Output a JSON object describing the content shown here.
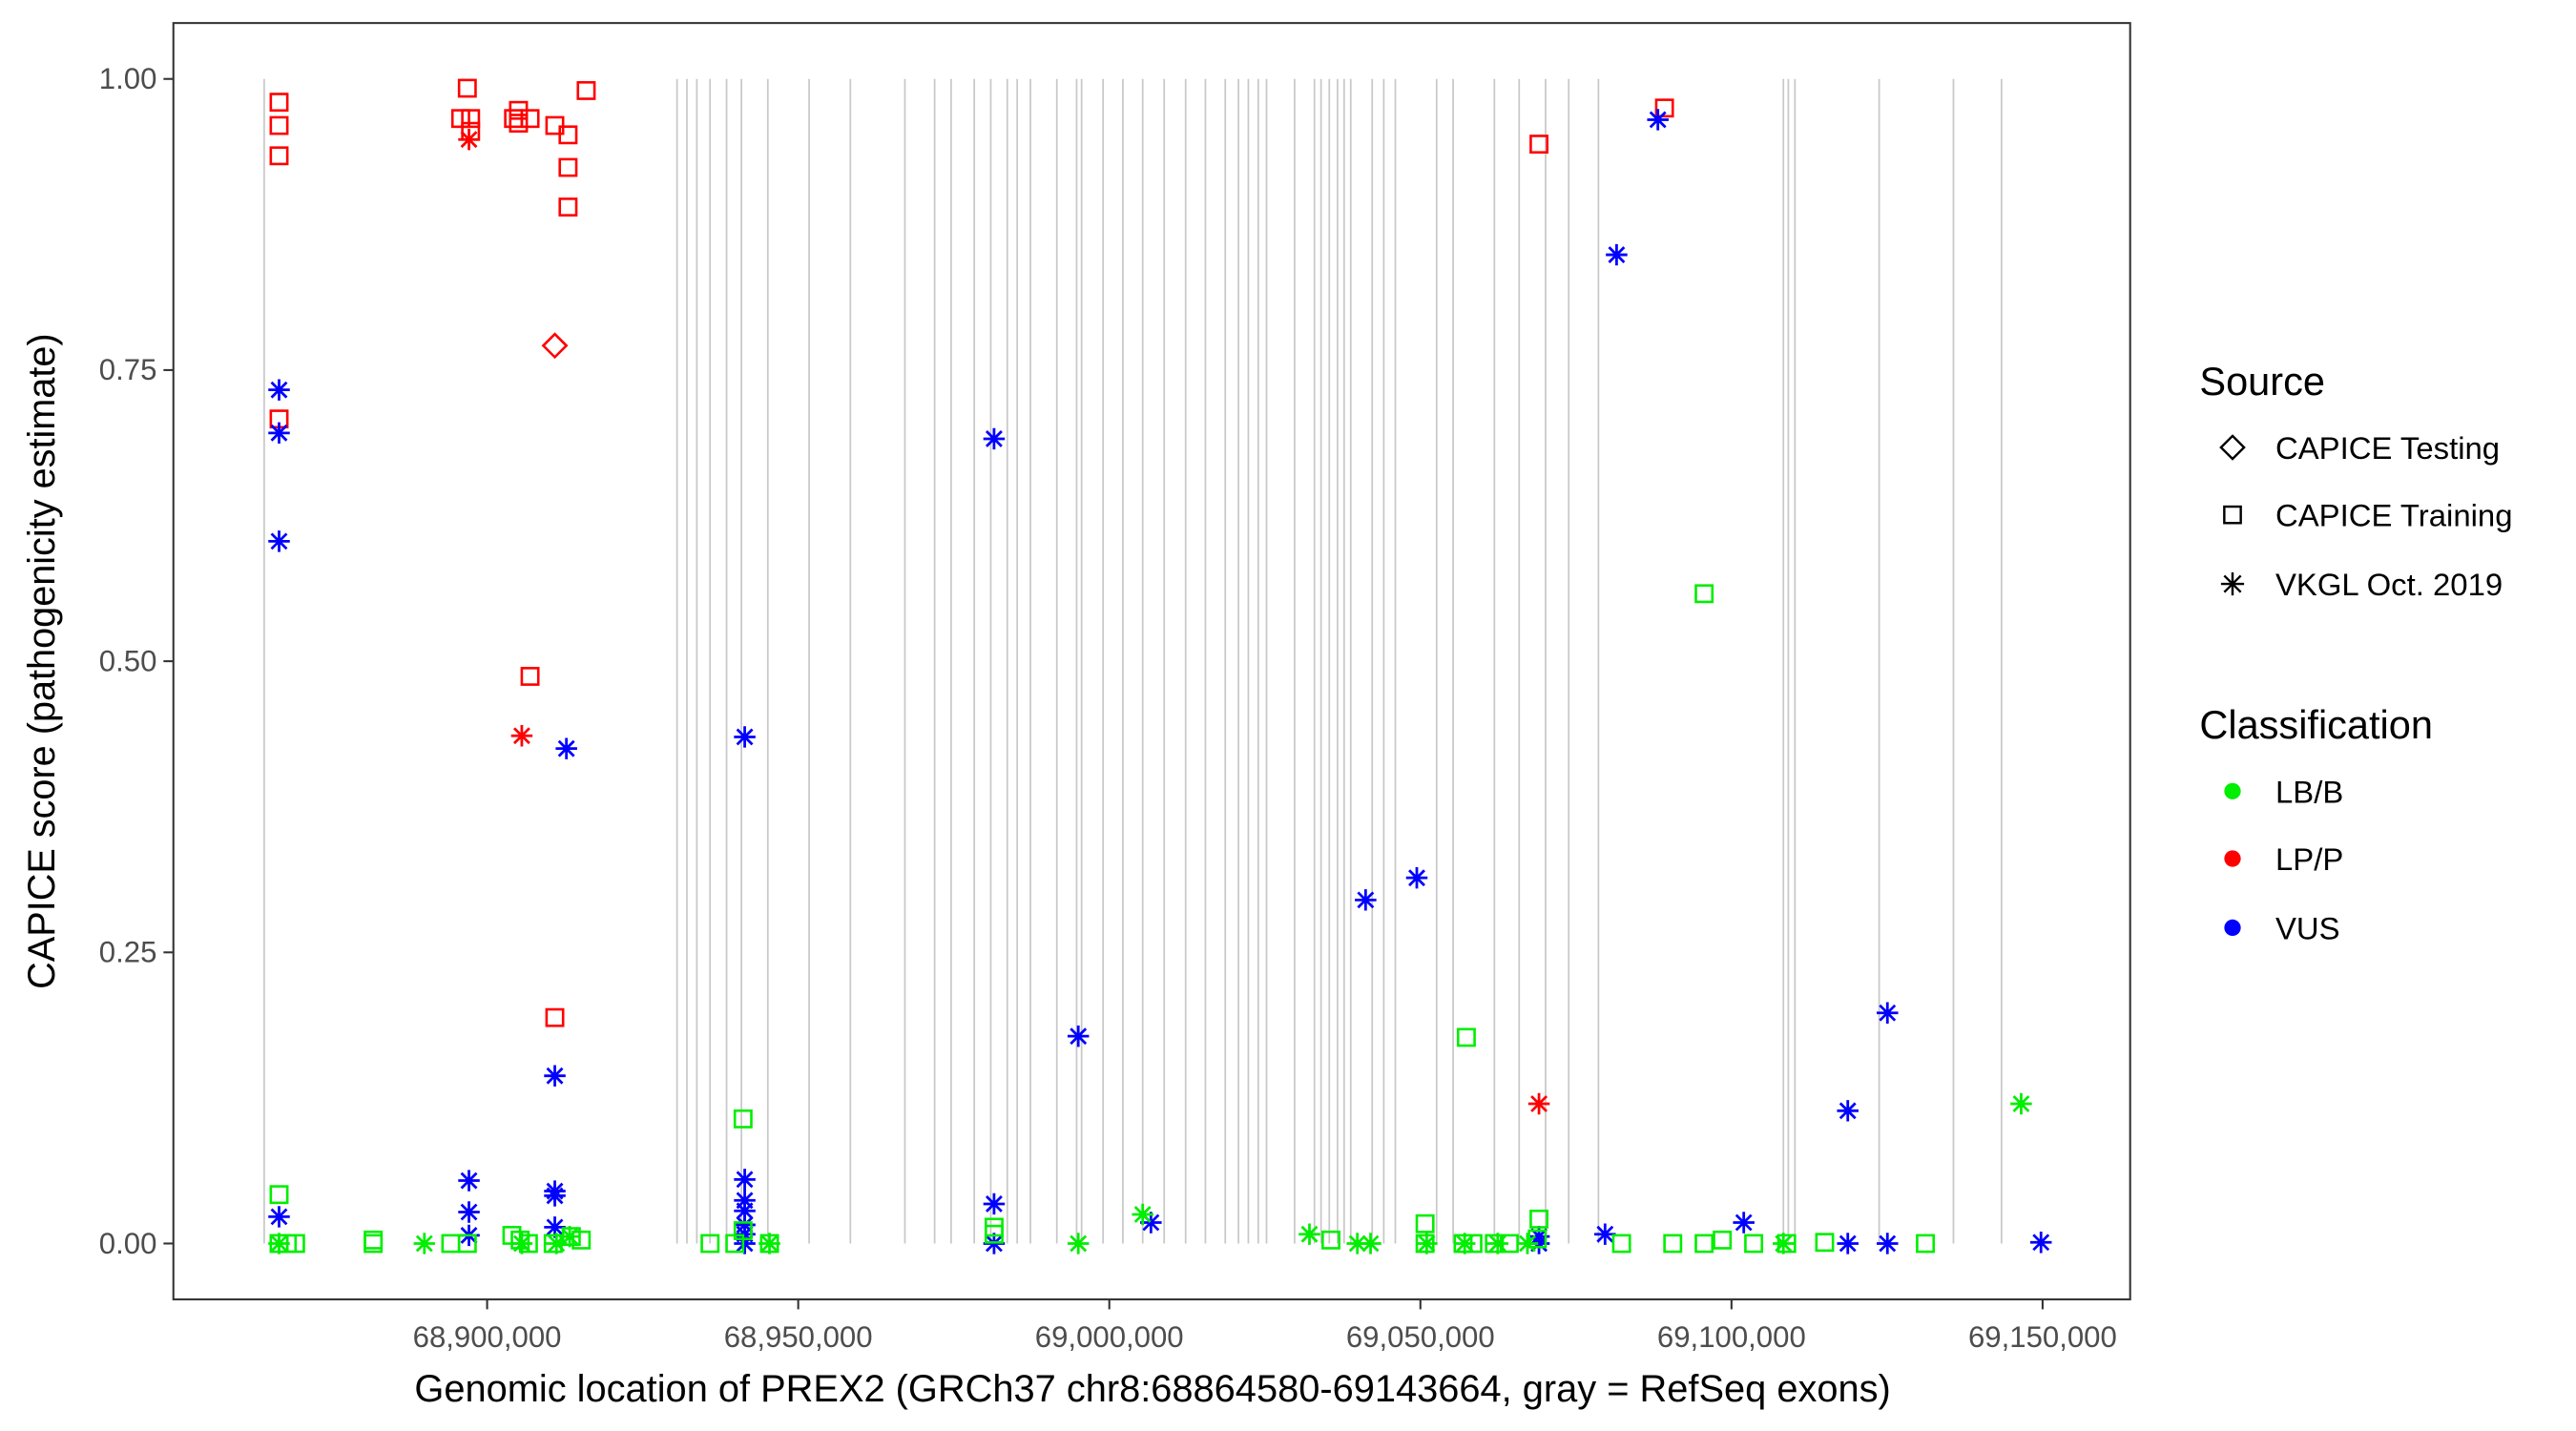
{
  "chart_data": {
    "type": "scatter",
    "title": "",
    "xlabel": "Genomic location of PREX2 (GRCh37 chr8:68864580-69143664, gray = RefSeq exons)",
    "ylabel": "CAPICE score (pathogenicity estimate)",
    "xlim": [
      68849574,
      69164073
    ],
    "ylim": [
      -0.048,
      1.048
    ],
    "x_ticks": [
      68900000,
      68950000,
      69000000,
      69050000,
      69100000,
      69150000
    ],
    "x_tick_labels": [
      "68,900,000",
      "68,950,000",
      "69,000,000",
      "69,050,000",
      "69,100,000",
      "69,150,000"
    ],
    "y_ticks": [
      0,
      0.25,
      0.5,
      0.75,
      1.0
    ],
    "y_tick_labels": [
      "0.00",
      "0.25",
      "0.50",
      "0.75",
      "1.00"
    ],
    "grid": false,
    "legend_placement": "right",
    "legend": {
      "source_title": "Source",
      "sources": [
        {
          "name": "CAPICE Testing",
          "shape": "diamond"
        },
        {
          "name": "CAPICE Training",
          "shape": "square"
        },
        {
          "name": "VKGL Oct. 2019",
          "shape": "asterisk"
        }
      ],
      "class_title": "Classification",
      "classes": [
        {
          "name": "LB/B",
          "color": "#00EE00"
        },
        {
          "name": "LP/P",
          "color": "#FF0000"
        },
        {
          "name": "VUS",
          "color": "#0000FF"
        }
      ]
    },
    "exons": [
      68864170,
      68930521,
      68932113,
      68933706,
      68935829,
      68938483,
      68940872,
      68945118,
      68951753,
      68958388,
      68967146,
      68971923,
      68974577,
      68978293,
      68980947,
      68983601,
      68985193,
      68987317,
      68991563,
      68994748,
      68995544,
      68998994,
      69002179,
      69005364,
      69008814,
      69012264,
      69015449,
      69018634,
      69020757,
      69022349,
      69023942,
      69025269,
      69029781,
      69032966,
      69034027,
      69035354,
      69036681,
      69037743,
      69038805,
      69042255,
      69044113,
      69045970,
      69052605,
      69055259,
      69061894,
      69065875,
      69070121,
      69073837,
      69078614,
      69108339,
      69109135,
      69110197,
      69123732,
      69135675,
      69143400
    ],
    "points_fields": [
      "position",
      "score",
      "source_index",
      "class_index"
    ],
    "points": [
      [
        68866560,
        0.98,
        1,
        1
      ],
      [
        68866560,
        0.96,
        1,
        1
      ],
      [
        68866560,
        0.934,
        1,
        1
      ],
      [
        68866560,
        0.708,
        1,
        1
      ],
      [
        68896815,
        0.992,
        1,
        1
      ],
      [
        68895754,
        0.966,
        1,
        1
      ],
      [
        68897346,
        0.966,
        1,
        1
      ],
      [
        68897346,
        0.955,
        1,
        1
      ],
      [
        68904246,
        0.966,
        1,
        1
      ],
      [
        68905043,
        0.973,
        1,
        1
      ],
      [
        68905043,
        0.962,
        1,
        1
      ],
      [
        68906900,
        0.966,
        1,
        1
      ],
      [
        68910881,
        0.96,
        1,
        1
      ],
      [
        68913005,
        0.952,
        1,
        1
      ],
      [
        68913005,
        0.924,
        1,
        1
      ],
      [
        68913005,
        0.89,
        1,
        1
      ],
      [
        68915924,
        0.99,
        1,
        1
      ],
      [
        68906900,
        0.487,
        1,
        1
      ],
      [
        68910881,
        0.194,
        1,
        1
      ],
      [
        69069060,
        0.944,
        1,
        1
      ],
      [
        69089230,
        0.975,
        1,
        1
      ],
      [
        68897081,
        0.948,
        2,
        1
      ],
      [
        68905573,
        0.436,
        2,
        1
      ],
      [
        69069060,
        0.12,
        2,
        1
      ],
      [
        68910881,
        0.771,
        0,
        1
      ],
      [
        68866560,
        0.733,
        2,
        2
      ],
      [
        68866560,
        0.696,
        2,
        2
      ],
      [
        68866560,
        0.603,
        2,
        2
      ],
      [
        68866560,
        0.023,
        2,
        2
      ],
      [
        68897081,
        0.054,
        2,
        2
      ],
      [
        68897081,
        0.027,
        2,
        2
      ],
      [
        68897081,
        0.007,
        2,
        2
      ],
      [
        68910881,
        0.144,
        2,
        2
      ],
      [
        68910881,
        0.045,
        2,
        2
      ],
      [
        68910881,
        0.041,
        2,
        2
      ],
      [
        68910881,
        0.014,
        2,
        2
      ],
      [
        68912739,
        0.425,
        2,
        2
      ],
      [
        68941402,
        0.435,
        2,
        2
      ],
      [
        68941402,
        0.055,
        2,
        2
      ],
      [
        68941402,
        0.037,
        2,
        2
      ],
      [
        68941402,
        0.028,
        2,
        2
      ],
      [
        68941402,
        0.016,
        2,
        2
      ],
      [
        68941402,
        0.008,
        2,
        2
      ],
      [
        68941402,
        0.0,
        2,
        2
      ],
      [
        68981478,
        0.691,
        2,
        2
      ],
      [
        68981478,
        0.034,
        2,
        2
      ],
      [
        68981478,
        0.0,
        2,
        2
      ],
      [
        68995013,
        0.178,
        2,
        2
      ],
      [
        69006691,
        0.018,
        2,
        2
      ],
      [
        69041193,
        0.295,
        2,
        2
      ],
      [
        69049420,
        0.314,
        2,
        2
      ],
      [
        69069060,
        0.006,
        2,
        2
      ],
      [
        69069060,
        0.0,
        2,
        2
      ],
      [
        69081534,
        0.849,
        2,
        2
      ],
      [
        69088169,
        0.965,
        2,
        2
      ],
      [
        69079676,
        0.008,
        2,
        2
      ],
      [
        69101969,
        0.018,
        2,
        2
      ],
      [
        69118690,
        0.114,
        2,
        2
      ],
      [
        69118690,
        0.0,
        2,
        2
      ],
      [
        69125059,
        0.198,
        2,
        2
      ],
      [
        69125059,
        0.0,
        2,
        2
      ],
      [
        69149741,
        0.001,
        2,
        2
      ],
      [
        68866560,
        0.042,
        1,
        0
      ],
      [
        68866560,
        0.0,
        1,
        0
      ],
      [
        68867886,
        0.0,
        1,
        0
      ],
      [
        68869214,
        0.0,
        1,
        0
      ],
      [
        68881687,
        0.003,
        1,
        0
      ],
      [
        68881687,
        0.0,
        1,
        0
      ],
      [
        68894161,
        0.0,
        1,
        0
      ],
      [
        68896815,
        0.0,
        1,
        0
      ],
      [
        68903981,
        0.007,
        1,
        0
      ],
      [
        68905308,
        0.003,
        1,
        0
      ],
      [
        68906635,
        0.0,
        1,
        0
      ],
      [
        68910616,
        0.0,
        1,
        0
      ],
      [
        68913535,
        0.006,
        1,
        0
      ],
      [
        68915128,
        0.003,
        1,
        0
      ],
      [
        68935829,
        0.0,
        1,
        0
      ],
      [
        68939810,
        0.0,
        1,
        0
      ],
      [
        68941137,
        0.107,
        1,
        0
      ],
      [
        68941137,
        0.011,
        1,
        0
      ],
      [
        68945383,
        0.0,
        1,
        0
      ],
      [
        68981478,
        0.014,
        1,
        0
      ],
      [
        68981478,
        0.008,
        1,
        0
      ],
      [
        69035619,
        0.003,
        1,
        0
      ],
      [
        69050747,
        0.017,
        1,
        0
      ],
      [
        69050747,
        0.0,
        1,
        0
      ],
      [
        69057382,
        0.177,
        1,
        0
      ],
      [
        69056852,
        0.0,
        1,
        0
      ],
      [
        69058444,
        0.0,
        1,
        0
      ],
      [
        69061894,
        0.0,
        1,
        0
      ],
      [
        69064283,
        0.0,
        1,
        0
      ],
      [
        69069060,
        0.021,
        1,
        0
      ],
      [
        69068794,
        0.004,
        1,
        0
      ],
      [
        69082330,
        0.0,
        1,
        0
      ],
      [
        69090557,
        0.0,
        1,
        0
      ],
      [
        69095600,
        0.0,
        1,
        0
      ],
      [
        69095600,
        0.558,
        1,
        0
      ],
      [
        69098519,
        0.003,
        1,
        0
      ],
      [
        69103562,
        0.0,
        1,
        0
      ],
      [
        69108870,
        0.0,
        1,
        0
      ],
      [
        69114974,
        0.001,
        1,
        0
      ],
      [
        69131163,
        0.0,
        1,
        0
      ],
      [
        68866560,
        0.0,
        2,
        0
      ],
      [
        68889915,
        0.0,
        2,
        0
      ],
      [
        68905573,
        0.0,
        2,
        0
      ],
      [
        68911147,
        0.0,
        2,
        0
      ],
      [
        68913270,
        0.006,
        2,
        0
      ],
      [
        68945383,
        0.0,
        2,
        0
      ],
      [
        68995013,
        0.0,
        2,
        0
      ],
      [
        69005364,
        0.025,
        2,
        0
      ],
      [
        69032169,
        0.008,
        2,
        0
      ],
      [
        69039866,
        0.0,
        2,
        0
      ],
      [
        69041989,
        0.0,
        2,
        0
      ],
      [
        69051013,
        0.0,
        2,
        0
      ],
      [
        69057117,
        0.0,
        2,
        0
      ],
      [
        69062425,
        0.0,
        2,
        0
      ],
      [
        69067202,
        0.0,
        2,
        0
      ],
      [
        69108339,
        0.0,
        2,
        0
      ],
      [
        69146556,
        0.12,
        2,
        0
      ]
    ]
  }
}
